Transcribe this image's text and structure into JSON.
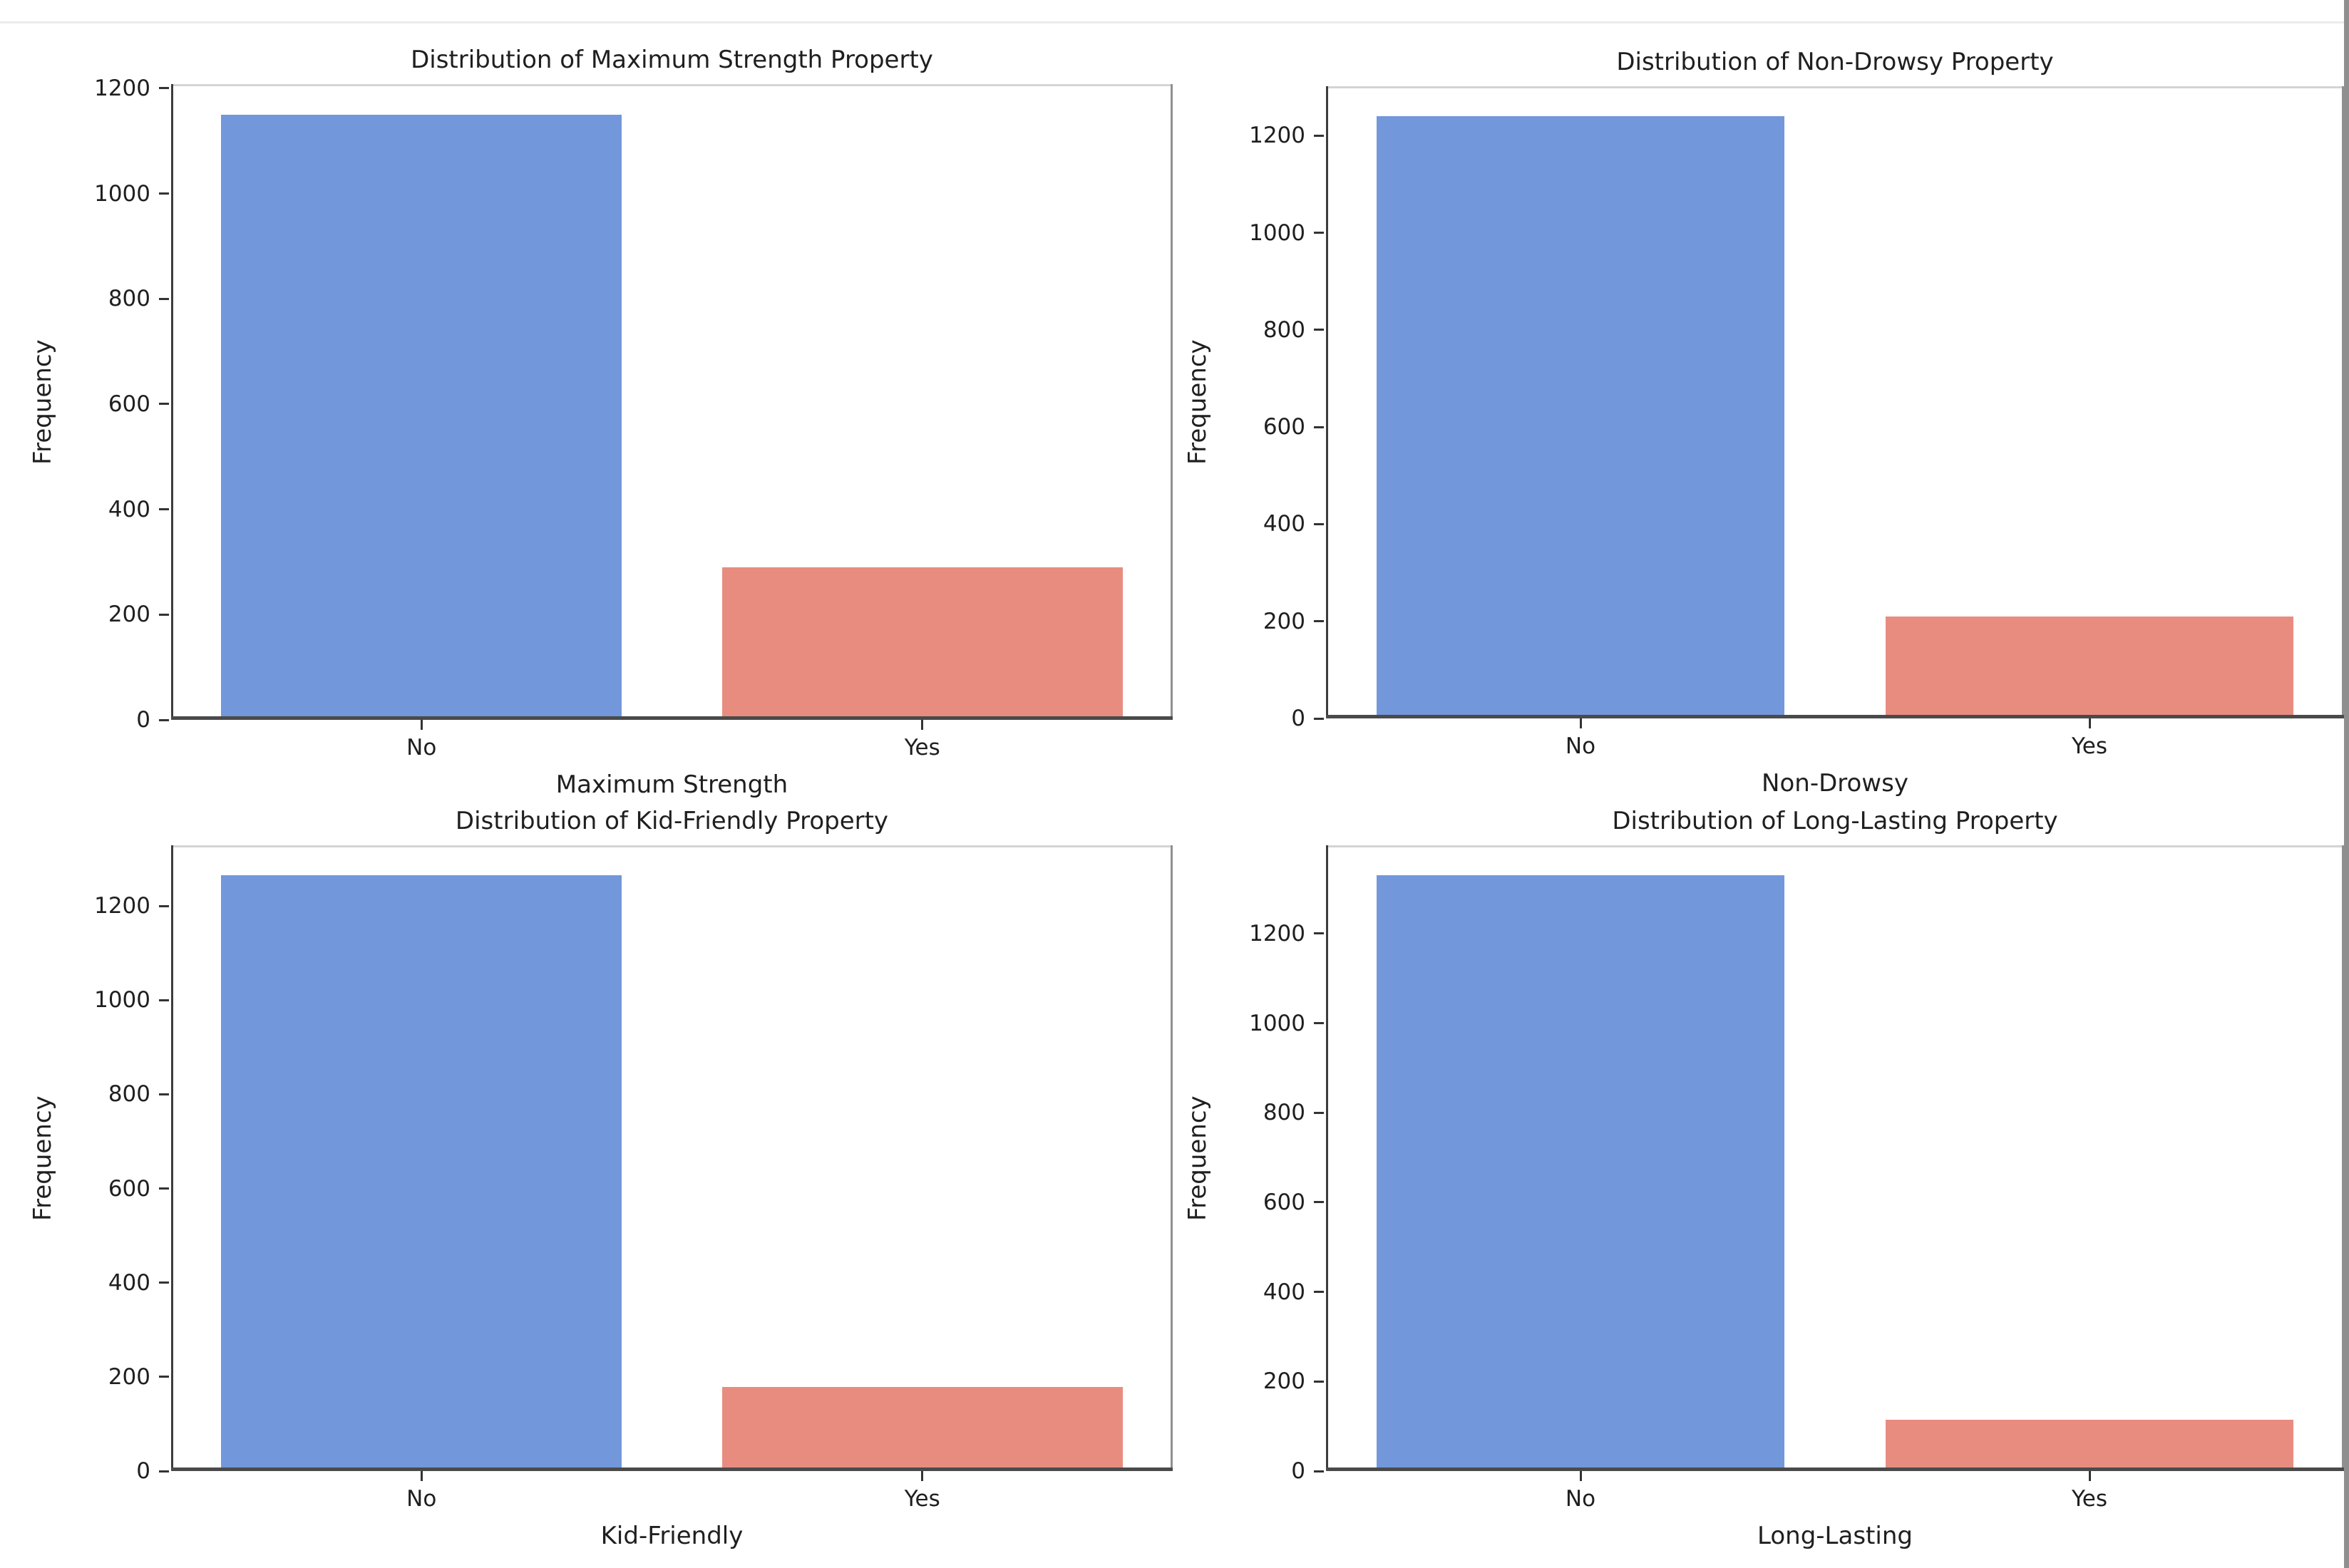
{
  "page": {
    "background": "#ffffff",
    "top_border_color": "#ececec",
    "right_edge_color": "#8f8f8f",
    "text_color": "#1f1f1f"
  },
  "palette": {
    "no_bar_color": "#7397DB",
    "yes_bar_color": "#E88C80",
    "spine_left_color": "#3c3c3c",
    "spine_bottom_color": "#4a4a4a",
    "spine_right_color": "#909090",
    "spine_top_color": "#d4d4d4",
    "tick_color": "#333333"
  },
  "chart_data": [
    {
      "type": "bar",
      "title": "Distribution of Maximum Strength Property",
      "xlabel": "Maximum Strength",
      "ylabel": "Frequency",
      "categories": [
        "No",
        "Yes"
      ],
      "values": [
        1150,
        290
      ],
      "yticks": [
        0,
        200,
        400,
        600,
        800,
        1000,
        1200
      ],
      "ylim": [
        0,
        1208
      ],
      "bar_colors": [
        "#7397DB",
        "#E88C80"
      ],
      "grid": false,
      "legend": false
    },
    {
      "type": "bar",
      "title": "Distribution of Non-Drowsy Property",
      "xlabel": "Non-Drowsy",
      "ylabel": "Frequency",
      "categories": [
        "No",
        "Yes"
      ],
      "values": [
        1240,
        210
      ],
      "yticks": [
        0,
        200,
        400,
        600,
        800,
        1000,
        1200
      ],
      "ylim": [
        0,
        1302
      ],
      "bar_colors": [
        "#7397DB",
        "#E88C80"
      ],
      "grid": false,
      "legend": false
    },
    {
      "type": "bar",
      "title": "Distribution of Kid-Friendly Property",
      "xlabel": "Kid-Friendly",
      "ylabel": "Frequency",
      "categories": [
        "No",
        "Yes"
      ],
      "values": [
        1265,
        178
      ],
      "yticks": [
        0,
        200,
        400,
        600,
        800,
        1000,
        1200
      ],
      "ylim": [
        0,
        1329
      ],
      "bar_colors": [
        "#7397DB",
        "#E88C80"
      ],
      "grid": false,
      "legend": false
    },
    {
      "type": "bar",
      "title": "Distribution of Long-Lasting Property",
      "xlabel": "Long-Lasting",
      "ylabel": "Frequency",
      "categories": [
        "No",
        "Yes"
      ],
      "values": [
        1330,
        115
      ],
      "yticks": [
        0,
        200,
        400,
        600,
        800,
        1000,
        1200
      ],
      "ylim": [
        0,
        1397
      ],
      "bar_colors": [
        "#7397DB",
        "#E88C80"
      ],
      "grid": false,
      "legend": false
    }
  ]
}
